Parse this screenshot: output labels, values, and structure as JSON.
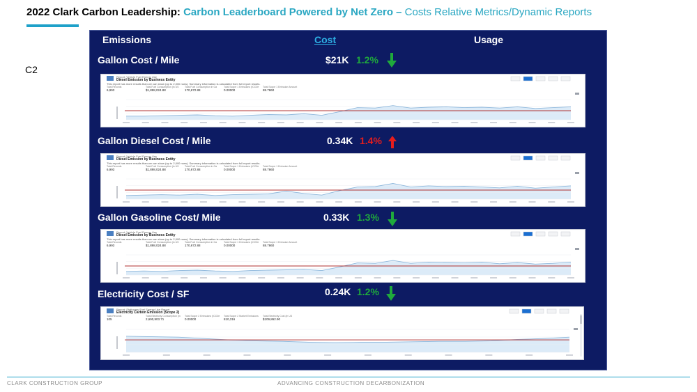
{
  "header": {
    "title_part1": "2022 Clark Carbon Leadership:",
    "title_part2": "Carbon Leaderboard Powered by Net Zero –",
    "title_part3": "Costs Relative Metrics/Dynamic Reports",
    "side_label": "C2"
  },
  "tabs": {
    "emissions": "Emissions",
    "cost": "Cost",
    "usage": "Usage"
  },
  "metrics": [
    {
      "label": "Gallon Cost / Mile",
      "value": "$21K",
      "pct": "1.2%",
      "direction": "down",
      "color": "#1faa3c",
      "report": {
        "subtitle": "Report: Vehicle Fuel Energy Use",
        "title": "Diesel Emission by Business Entity",
        "note": "This report has more results than we can show (up to 2,000 rows). Summary information is calculated from full report results.",
        "stats": [
          {
            "label": "Total Records",
            "value": "6,993"
          },
          {
            "label": "Total Fuel Consumption (in US",
            "value": "$1,898,024.88"
          },
          {
            "label": "Total Fuel Consumption in Ga",
            "value": "170,672.88"
          },
          {
            "label": "Total Scope 1 Emissions (tCO2e",
            "value": "0.00000"
          },
          {
            "label": "Total Scope 1 Emission Amount",
            "value": "88.7860"
          }
        ]
      }
    },
    {
      "label": "Gallon Diesel Cost / Mile",
      "value": "0.34K",
      "pct": "1.4%",
      "direction": "up",
      "color": "#e51d1d",
      "report": {
        "subtitle": "Report: Vehicle Fuel Energy Use",
        "title": "Diesel Emission by Business Entity",
        "note": "This report has more results than we can show (up to 2,000 rows). Summary information is calculated from full report results.",
        "stats": [
          {
            "label": "Total Records",
            "value": "6,993"
          },
          {
            "label": "Total Fuel Consumption (in US",
            "value": "$1,898,024.88"
          },
          {
            "label": "Total Fuel Consumption in Ga",
            "value": "170,672.88"
          },
          {
            "label": "Total Scope 1 Emissions (tCO2e",
            "value": "0.00000"
          },
          {
            "label": "Total Scope 1 Emission Amount",
            "value": "88.7860"
          }
        ]
      }
    },
    {
      "label": "Gallon Gasoline Cost/ Mile",
      "value": "0.33K",
      "pct": "1.3%",
      "direction": "down",
      "color": "#1faa3c",
      "report": {
        "subtitle": "Report: Vehicle Fuel Energy Use",
        "title": "Diesel Emission by Business Entity",
        "note": "This report has more results than we can show (up to 2,000 rows). Summary information is calculated from full report results.",
        "stats": [
          {
            "label": "Total Records",
            "value": "6,993"
          },
          {
            "label": "Total Fuel Consumption (in US",
            "value": "$1,898,024.88"
          },
          {
            "label": "Total Fuel Consumption in Ga",
            "value": "170,672.88"
          },
          {
            "label": "Total Scope 1 Emissions (tCO2e",
            "value": "0.00000"
          },
          {
            "label": "Total Scope 1 Emission Amount",
            "value": "88.7860"
          }
        ]
      }
    },
    {
      "label": "Electricity Cost / SF",
      "value": "0.24K",
      "pct": "1.2%",
      "direction": "down",
      "color": "#1faa3c",
      "report": {
        "subtitle": "Report: Stationary Fuel Energy Use Report",
        "title": "Electricity Carbon Emission (Scope 2)",
        "note": "",
        "stats": [
          {
            "label": "Total Records",
            "value": "105"
          },
          {
            "label": "Total Electricity Consumption (in",
            "value": "2,690,903.71"
          },
          {
            "label": "Total Scope 2 Emissions (tCO2e",
            "value": "0.00000"
          },
          {
            "label": "Total Scope 2 Market Emissions",
            "value": "810,316"
          },
          {
            "label": "Total Electricity Cost (in US",
            "value": "$109,862.90"
          }
        ]
      }
    }
  ],
  "footer": {
    "left": "CLARK CONSTRUCTION GROUP",
    "right": "ADVANCING CONSTRUCTION DECARBONIZATION"
  },
  "colors": {
    "panel_bg": "#0d1b63",
    "accent_teal": "#2aa7c2",
    "cost_tab": "#2eb0e4",
    "chart_line": "#8fb8dc",
    "chart_area": "#dcebf8",
    "target_line": "#b03030"
  },
  "icons": [
    "arrow-down-icon",
    "arrow-up-icon"
  ]
}
